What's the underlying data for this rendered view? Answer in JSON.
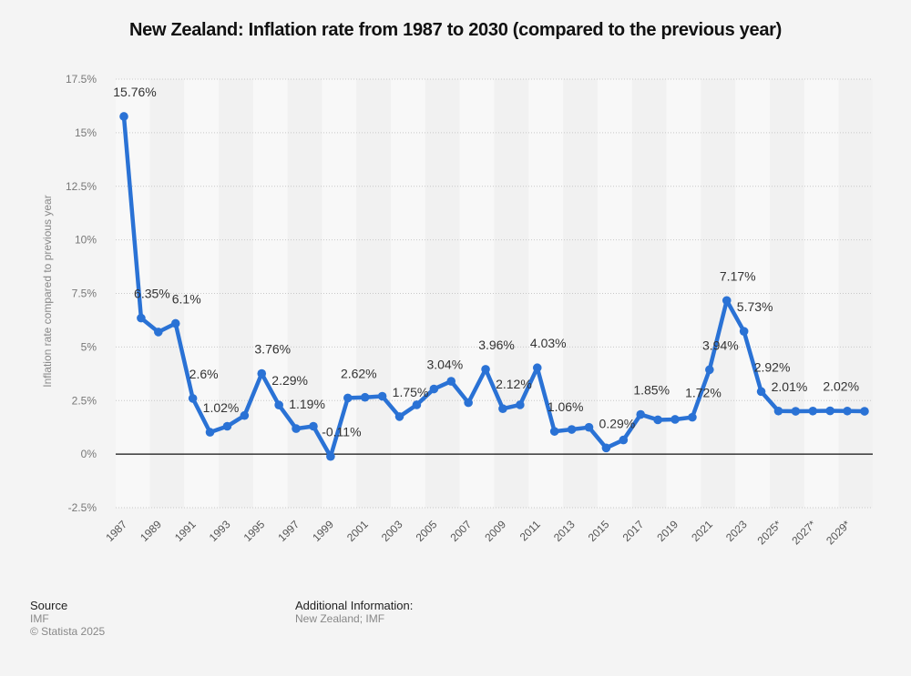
{
  "title": "New Zealand: Inflation rate from 1987 to 2030 (compared to the previous year)",
  "footer": {
    "source_heading": "Source",
    "source_value": "IMF",
    "copyright": "© Statista 2025",
    "additional_heading": "Additional Information:",
    "additional_value": "New Zealand; IMF"
  },
  "colors": {
    "line": "#2a72d5",
    "band_light": "#f8f8f8",
    "band_dark": "#f1f1f1",
    "background": "#f4f4f4"
  },
  "chart_data": {
    "type": "line",
    "title": "New Zealand: Inflation rate from 1987 to 2030 (compared to the previous year)",
    "xlabel": "",
    "ylabel": "Inflation rate compared to previous year",
    "ylim": [
      -2.5,
      17.5
    ],
    "yticks": [
      -2.5,
      0,
      2.5,
      5,
      7.5,
      10,
      12.5,
      15,
      17.5
    ],
    "ytick_labels": [
      "-2.5%",
      "0%",
      "2.5%",
      "5%",
      "7.5%",
      "10%",
      "12.5%",
      "15%",
      "17.5%"
    ],
    "grid": true,
    "legend": "none",
    "x": [
      "1987",
      "1988",
      "1989",
      "1990",
      "1991",
      "1992",
      "1993",
      "1994",
      "1995",
      "1996",
      "1997",
      "1998",
      "1999",
      "2000",
      "2001",
      "2002",
      "2003",
      "2004",
      "2005",
      "2006",
      "2007",
      "2008",
      "2009",
      "2010",
      "2011",
      "2012",
      "2013",
      "2014",
      "2015",
      "2016",
      "2017",
      "2018",
      "2019",
      "2020",
      "2021",
      "2022",
      "2023",
      "2024",
      "2025*",
      "2026*",
      "2027*",
      "2028*",
      "2029*",
      "2030*"
    ],
    "xtick_labels": [
      "1987",
      "1989",
      "1991",
      "1993",
      "1995",
      "1997",
      "1999",
      "2001",
      "2003",
      "2005",
      "2007",
      "2009",
      "2011",
      "2013",
      "2015",
      "2017",
      "2019",
      "2021",
      "2023",
      "2025*",
      "2027*",
      "2029*"
    ],
    "series": [
      {
        "name": "Inflation rate",
        "values": [
          15.76,
          6.35,
          5.7,
          6.1,
          2.6,
          1.02,
          1.3,
          1.8,
          3.76,
          2.29,
          1.19,
          1.3,
          -0.11,
          2.62,
          2.65,
          2.7,
          1.75,
          2.3,
          3.04,
          3.4,
          2.4,
          3.96,
          2.12,
          2.3,
          4.03,
          1.06,
          1.15,
          1.25,
          0.29,
          0.66,
          1.85,
          1.6,
          1.62,
          1.72,
          3.94,
          7.17,
          5.73,
          2.92,
          2.01,
          2.0,
          2.01,
          2.02,
          2.01,
          2.0
        ]
      }
    ],
    "data_labels": [
      {
        "x": "1987",
        "text": "15.76%"
      },
      {
        "x": "1988",
        "text": "6.35%"
      },
      {
        "x": "1990",
        "text": "6.1%"
      },
      {
        "x": "1991",
        "text": "2.6%"
      },
      {
        "x": "1992",
        "text": "1.02%"
      },
      {
        "x": "1995",
        "text": "3.76%"
      },
      {
        "x": "1996",
        "text": "2.29%"
      },
      {
        "x": "1997",
        "text": "1.19%"
      },
      {
        "x": "1999",
        "text": "-0.11%"
      },
      {
        "x": "2000",
        "text": "2.62%"
      },
      {
        "x": "2003",
        "text": "1.75%"
      },
      {
        "x": "2005",
        "text": "3.04%"
      },
      {
        "x": "2008",
        "text": "3.96%"
      },
      {
        "x": "2009",
        "text": "2.12%"
      },
      {
        "x": "2011",
        "text": "4.03%"
      },
      {
        "x": "2012",
        "text": "1.06%"
      },
      {
        "x": "2015",
        "text": "0.29%"
      },
      {
        "x": "2017",
        "text": "1.85%"
      },
      {
        "x": "2020",
        "text": "1.72%"
      },
      {
        "x": "2021",
        "text": "3.94%"
      },
      {
        "x": "2022",
        "text": "7.17%"
      },
      {
        "x": "2023",
        "text": "5.73%"
      },
      {
        "x": "2024",
        "text": "2.92%"
      },
      {
        "x": "2025*",
        "text": "2.01%"
      },
      {
        "x": "2028*",
        "text": "2.02%"
      }
    ]
  }
}
